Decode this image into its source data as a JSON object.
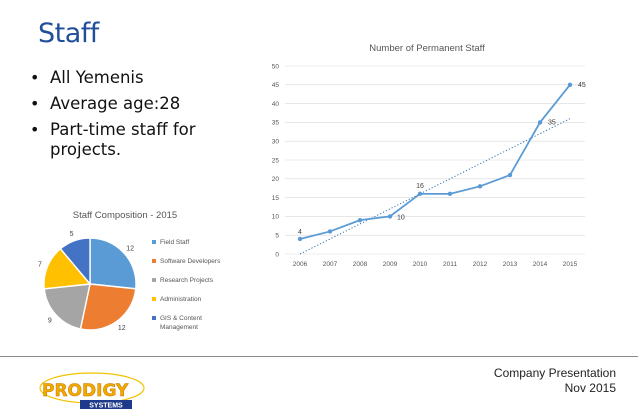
{
  "slide": {
    "title": "Staff",
    "bullets": [
      "All Yemenis",
      "Average age:28",
      "Part-time staff for projects."
    ],
    "footer": {
      "line1": "Company Presentation",
      "line2": "Nov 2015"
    },
    "logo": {
      "name": "PRODIGY",
      "sub": "SYSTEMS"
    }
  },
  "chart_data": [
    {
      "type": "line",
      "title": "Number of Permanent Staff",
      "x": [
        "2006",
        "2007",
        "2008",
        "2009",
        "2010",
        "2011",
        "2012",
        "2013",
        "2014",
        "2015"
      ],
      "series": [
        {
          "values": [
            4,
            6,
            9,
            10,
            16,
            16,
            18,
            21,
            35,
            45
          ],
          "color": "#5b9bd5"
        }
      ],
      "labeled_points": [
        {
          "x": "2006",
          "label": "4"
        },
        {
          "x": "2009",
          "label": "10"
        },
        {
          "x": "2010",
          "label": "16"
        },
        {
          "x": "2014",
          "label": "35"
        },
        {
          "x": "2015",
          "label": "45"
        }
      ],
      "trendline": {
        "style": "dotted",
        "color": "#2e75b6",
        "from": [
          "2006",
          0
        ],
        "to": [
          "2015",
          36
        ]
      },
      "ylim": [
        0,
        50
      ],
      "yticks": [
        0,
        5,
        10,
        15,
        20,
        25,
        30,
        35,
        40,
        45,
        50
      ],
      "grid": true
    },
    {
      "type": "pie",
      "title": "Staff Composition - 2015",
      "slices": [
        {
          "label": "Field Staff",
          "value": 12,
          "color": "#5b9bd5"
        },
        {
          "label": "Software Developers",
          "value": 12,
          "color": "#ed7d31"
        },
        {
          "label": "Research Projects",
          "value": 9,
          "color": "#a5a5a5"
        },
        {
          "label": "Administration",
          "value": 7,
          "color": "#ffc000"
        },
        {
          "label": "GIS & Content Management",
          "value": 5,
          "color": "#4472c4"
        }
      ],
      "legend": "right"
    }
  ]
}
